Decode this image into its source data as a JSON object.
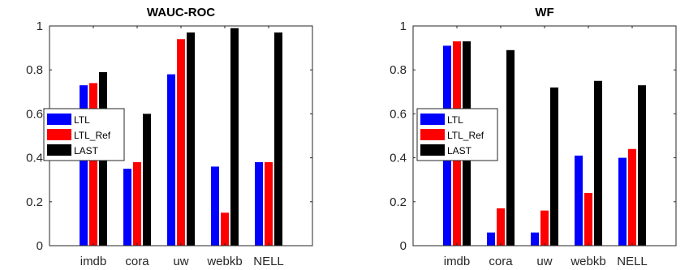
{
  "chart_data": [
    {
      "type": "bar",
      "title": "WAUC-ROC",
      "categories": [
        "imdb",
        "cora",
        "uw",
        "webkb",
        "NELL"
      ],
      "series": [
        {
          "name": "LTL",
          "color": "#0000ff",
          "values": [
            0.73,
            0.35,
            0.78,
            0.36,
            0.38
          ]
        },
        {
          "name": "LTL_Ref",
          "color": "#ff0000",
          "values": [
            0.74,
            0.38,
            0.94,
            0.15,
            0.38
          ]
        },
        {
          "name": "LAST",
          "color": "#000000",
          "values": [
            0.79,
            0.6,
            0.97,
            0.99,
            0.97
          ]
        }
      ],
      "ylim": [
        0,
        1
      ],
      "yticks": [
        "0",
        "0.2",
        "0.4",
        "0.6",
        "0.8",
        "1"
      ],
      "legend_position": "left",
      "grid": false
    },
    {
      "type": "bar",
      "title": "WF",
      "categories": [
        "imdb",
        "cora",
        "uw",
        "webkb",
        "NELL"
      ],
      "series": [
        {
          "name": "LTL",
          "color": "#0000ff",
          "values": [
            0.91,
            0.06,
            0.06,
            0.41,
            0.4
          ]
        },
        {
          "name": "LTL_Ref",
          "color": "#ff0000",
          "values": [
            0.93,
            0.17,
            0.16,
            0.24,
            0.44
          ]
        },
        {
          "name": "LAST",
          "color": "#000000",
          "values": [
            0.93,
            0.89,
            0.72,
            0.75,
            0.73
          ]
        }
      ],
      "ylim": [
        0,
        1
      ],
      "yticks": [
        "0",
        "0.2",
        "0.4",
        "0.6",
        "0.8",
        "1"
      ],
      "legend_position": "left",
      "grid": false
    }
  ]
}
